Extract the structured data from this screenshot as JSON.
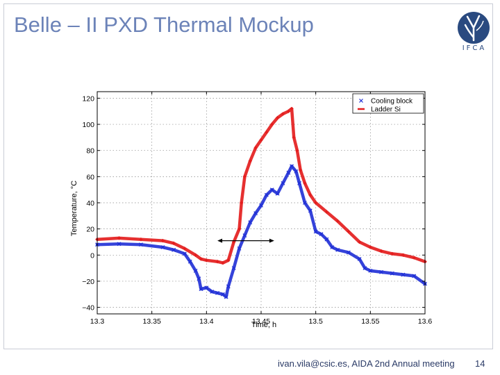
{
  "slide": {
    "title": "Belle – II PXD Thermal Mockup",
    "footer": "ivan.vila@csic.es, AIDA 2nd Annual meeting",
    "page_number": "14",
    "logo_text": "IFCA"
  },
  "colors": {
    "title": "#6c83b8",
    "series_blue": "#1f2fd6",
    "series_red": "#e31a1a",
    "logo": "#2a4a80"
  },
  "chart_data": {
    "type": "scatter",
    "xlabel": "Time, h",
    "ylabel": "Temperature, °C",
    "xlim": [
      13.3,
      13.6
    ],
    "ylim": [
      -45,
      125
    ],
    "x_ticks": [
      13.3,
      13.35,
      13.4,
      13.45,
      13.5,
      13.55,
      13.6
    ],
    "x_tick_labels": [
      "13.3",
      "13.35",
      "13.4",
      "13.45",
      "13.5",
      "13.55",
      "13.6"
    ],
    "y_ticks": [
      -40,
      -20,
      0,
      20,
      40,
      60,
      80,
      100,
      120
    ],
    "y_tick_labels": [
      "−40",
      "−20",
      "0",
      "20",
      "40",
      "60",
      "80",
      "100",
      "120"
    ],
    "grid": true,
    "legend_position": "top-right",
    "annotation": {
      "type": "double-arrow",
      "x_start": 13.41,
      "x_end": 13.462,
      "y": 11
    },
    "series": [
      {
        "name": "Cooling block",
        "marker": "x",
        "color": "#1f2fd6",
        "points": [
          [
            13.3,
            8
          ],
          [
            13.32,
            8.5
          ],
          [
            13.34,
            8
          ],
          [
            13.36,
            6
          ],
          [
            13.37,
            4
          ],
          [
            13.38,
            1
          ],
          [
            13.385,
            -5
          ],
          [
            13.39,
            -12
          ],
          [
            13.393,
            -18
          ],
          [
            13.395,
            -26
          ],
          [
            13.4,
            -25
          ],
          [
            13.405,
            -28
          ],
          [
            13.41,
            -29
          ],
          [
            13.415,
            -30
          ],
          [
            13.418,
            -32
          ],
          [
            13.42,
            -24
          ],
          [
            13.425,
            -10
          ],
          [
            13.43,
            5
          ],
          [
            13.435,
            15
          ],
          [
            13.44,
            25
          ],
          [
            13.445,
            32
          ],
          [
            13.45,
            38
          ],
          [
            13.455,
            46
          ],
          [
            13.46,
            50
          ],
          [
            13.465,
            47
          ],
          [
            13.47,
            55
          ],
          [
            13.475,
            63
          ],
          [
            13.478,
            68
          ],
          [
            13.482,
            64
          ],
          [
            13.485,
            55
          ],
          [
            13.49,
            40
          ],
          [
            13.495,
            34
          ],
          [
            13.5,
            18
          ],
          [
            13.505,
            16
          ],
          [
            13.51,
            12
          ],
          [
            13.515,
            6
          ],
          [
            13.52,
            4
          ],
          [
            13.53,
            2
          ],
          [
            13.54,
            -3
          ],
          [
            13.545,
            -10
          ],
          [
            13.55,
            -12
          ],
          [
            13.56,
            -13
          ],
          [
            13.57,
            -14
          ],
          [
            13.58,
            -15
          ],
          [
            13.59,
            -16
          ],
          [
            13.6,
            -22
          ]
        ]
      },
      {
        "name": "Ladder Si",
        "marker": "+",
        "color": "#e31a1a",
        "points": [
          [
            13.3,
            12
          ],
          [
            13.32,
            13
          ],
          [
            13.34,
            12
          ],
          [
            13.36,
            11
          ],
          [
            13.37,
            9
          ],
          [
            13.38,
            5
          ],
          [
            13.39,
            0
          ],
          [
            13.395,
            -3
          ],
          [
            13.4,
            -4
          ],
          [
            13.41,
            -5
          ],
          [
            13.415,
            -6
          ],
          [
            13.42,
            -4
          ],
          [
            13.425,
            10
          ],
          [
            13.43,
            20
          ],
          [
            13.432,
            40
          ],
          [
            13.435,
            60
          ],
          [
            13.44,
            72
          ],
          [
            13.445,
            82
          ],
          [
            13.45,
            88
          ],
          [
            13.455,
            94
          ],
          [
            13.46,
            100
          ],
          [
            13.465,
            105
          ],
          [
            13.47,
            108
          ],
          [
            13.475,
            110
          ],
          [
            13.478,
            112
          ],
          [
            13.48,
            90
          ],
          [
            13.483,
            80
          ],
          [
            13.486,
            65
          ],
          [
            13.49,
            55
          ],
          [
            13.495,
            46
          ],
          [
            13.5,
            40
          ],
          [
            13.51,
            33
          ],
          [
            13.52,
            26
          ],
          [
            13.53,
            18
          ],
          [
            13.54,
            10
          ],
          [
            13.55,
            6
          ],
          [
            13.56,
            3
          ],
          [
            13.57,
            1
          ],
          [
            13.58,
            0
          ],
          [
            13.59,
            -2
          ],
          [
            13.6,
            -5
          ]
        ]
      }
    ]
  }
}
